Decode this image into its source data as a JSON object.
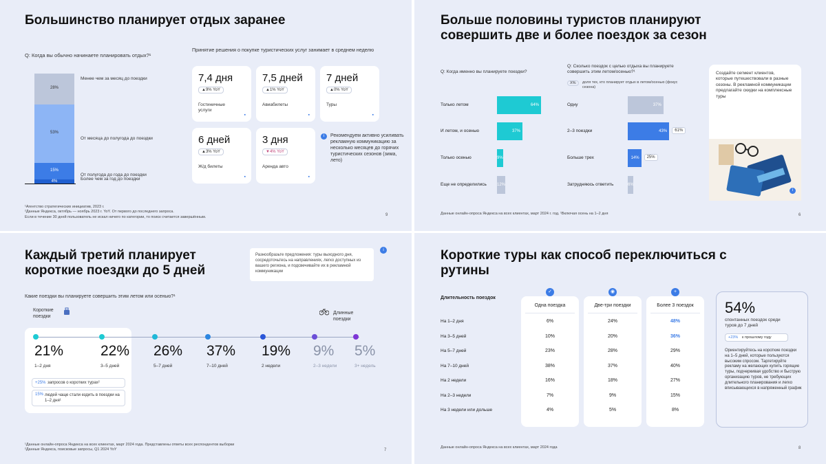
{
  "slide1": {
    "title": "Большинство планирует отдых заранее",
    "question": "Q: Когда вы обычно начинаете планировать отдых?¹",
    "stack": [
      {
        "label": "Менее чем за месяц до поездки",
        "pct": "28%",
        "value": 28,
        "color": "#bcc6da"
      },
      {
        "label": "От месяца до полугода до поездки",
        "pct": "53%",
        "value": 53,
        "color": "#8db5f5"
      },
      {
        "label": "От полугода до года до поездки",
        "pct": "15%",
        "value": 15,
        "color": "#3c7ce6"
      },
      {
        "label": "Более чем за год до поездки",
        "pct": "4%",
        "value": 4,
        "color": "#1f5fd0"
      }
    ],
    "decision_header": "Принятие решения о покупке туристических услуг занимает в среднем неделю",
    "cards": [
      {
        "days": "7,4 дня",
        "yoy": "▲9% YoY",
        "label": "Гостиничные услуги",
        "icon": "bed-icon"
      },
      {
        "days": "7,5 дней",
        "yoy": "▲1% YoY",
        "label": "Авиабилеты",
        "icon": "plane-icon"
      },
      {
        "days": "7 дней",
        "yoy": "▲0% YoY",
        "label": "Туры",
        "icon": "bus-icon"
      },
      {
        "days": "6 дней",
        "yoy": "▲3% YoY",
        "label": "Ж/д билеты",
        "icon": "train-icon"
      },
      {
        "days": "3 дня",
        "yoy": "▼4% YoY",
        "label": "Аренда авто",
        "icon": "car-icon"
      }
    ],
    "recommendation": "Рекомендуем активно усиливать рекламную коммуникацию за несколько месяцев до горячих туристических сезонов (зима, лето)",
    "footnotes": [
      "¹Агентство стратегических инициатив, 2023 г.",
      "²Данные Яндекса, октябрь — ноябрь 2023 г. YoY. От первого до последнего запроса.",
      "Если в течение 30 дней пользователь не искал ничего по категории, то поиск считается завершённым."
    ],
    "page": "9"
  },
  "slide2": {
    "title": "Больше половины туристов планируют совершить две и более поездок за сезон",
    "q1": "Q: Когда именно вы планируете поездки?",
    "q2": "Q: Сколько поездок с целью отдыха вы планируете совершить этим летом/осенью?¹",
    "legend_pill": "X%",
    "legend_text": "доля тех, кто планирует отдых в летом/осенью (фокус сезона)",
    "left_bars": [
      {
        "label": "Только летом",
        "pct": "64%",
        "value": 64,
        "color": "#1ecad3"
      },
      {
        "label": "И летом, и осенью",
        "pct": "37%",
        "value": 37,
        "color": "#1ecad3"
      },
      {
        "label": "Только осенью",
        "pct": "9%",
        "value": 9,
        "color": "#1ecad3"
      },
      {
        "label": "Еще не определились",
        "pct": "12%",
        "value": 12,
        "color": "#bcc6da"
      }
    ],
    "right_bars": [
      {
        "label": "Одну",
        "pct": "37%",
        "value": 37,
        "color": "#bcc6da",
        "extra": ""
      },
      {
        "label": "2–3 поездки",
        "pct": "43%",
        "value": 43,
        "color": "#3c7ce6",
        "extra": "61%"
      },
      {
        "label": "Больше трех",
        "pct": "14%",
        "value": 14,
        "color": "#3c7ce6",
        "extra": "25%"
      },
      {
        "label": "Затрудняюсь ответить",
        "pct": "6%",
        "value": 6,
        "color": "#bcc6da",
        "extra": ""
      }
    ],
    "tip": "Создайте сегмент клиентов, которые путешествовали в разные сезоны. В рекламной коммуникации предлагайте скидки на комплексные туры",
    "footnote": "Данные онлайн-опроса Яндекса на всех клиентах, март 2024 г. год. ¹Включая осень на 1–2 дня",
    "page": "6"
  },
  "slide3": {
    "title": "Каждый третий планирует короткие поездки до 5 дней",
    "callout": "Разнообразьте предложения: туры выходного дня, сосредоточьтесь на направлениях, легко доступных из вашего региона, и подсвечивайте их в рекламной коммуникации",
    "question": "Какие поездки вы планируете совершить этим летом или осенью?¹",
    "short_label": "Короткие поездки",
    "long_label": "Длинные поездки",
    "points": [
      {
        "pct": "21%",
        "label": "1–2 дня",
        "color": "#1ecad3"
      },
      {
        "pct": "22%",
        "label": "3–5 дней",
        "color": "#1ecad3"
      },
      {
        "pct": "26%",
        "label": "5–7 дней",
        "color": "#20b8d8"
      },
      {
        "pct": "37%",
        "label": "7–10 дней",
        "color": "#2c86e0"
      },
      {
        "pct": "19%",
        "label": "2 недели",
        "color": "#2a56d8"
      },
      {
        "pct": "9%",
        "label": "2–3 недели",
        "color": "#6c4fd8"
      },
      {
        "pct": "5%",
        "label": "3+ недель",
        "color": "#7d35d6"
      }
    ],
    "note1_hl": "+25%",
    "note1_rest": "запросов о коротких турах²",
    "note2_hl": "15%",
    "note2_rest": "людей чаще стали ездить в поездки на 1–2 дня¹",
    "footnotes": [
      "¹Данные онлайн-опроса Яндекса на всех клиентах, март 2024 года. Представлены ответы всех респондентов выборки",
      "²Данные Яндекса, поисковые запросы, Q1 2024 YoY"
    ],
    "page": "7"
  },
  "slide4": {
    "title": "Короткие туры как способ переключиться с рутины",
    "col_header": "Длительность поездок",
    "columns": [
      "Одна поездка",
      "Две-три поездки",
      "Более 3 поездок"
    ],
    "rows": [
      {
        "label": "На 1–2 дня",
        "values": [
          "6%",
          "24%",
          "48%"
        ]
      },
      {
        "label": "На 3–5 дней",
        "values": [
          "10%",
          "20%",
          "36%"
        ]
      },
      {
        "label": "На 5–7 дней",
        "values": [
          "23%",
          "28%",
          "29%"
        ]
      },
      {
        "label": "На 7–10 дней",
        "values": [
          "38%",
          "37%",
          "40%"
        ]
      },
      {
        "label": "На 2 недели",
        "values": [
          "16%",
          "18%",
          "27%"
        ]
      },
      {
        "label": "На 2–3 недели",
        "values": [
          "7%",
          "9%",
          "15%"
        ]
      },
      {
        "label": "На 3 недели или дольше",
        "values": [
          "4%",
          "5%",
          "8%"
        ]
      }
    ],
    "highlight": [
      "48%",
      "36%"
    ],
    "stat_big": "54%",
    "stat_text": "спонтанных поездок среди туров до 7 дней",
    "stat_pill_hl": "+23%",
    "stat_pill_rest": "к прошлому году",
    "side_text": "Ориентируйтесь на короткие поездки на 1–5 дней, которые пользуются высоким спросом. Таргетируйте рекламу на желающих купить горящие туры, подчеркивая удобство и быструю организацию туров, не требующих длительного планирования и легко вписывающихся в напряженный график",
    "footnote": "Данные онлайн-опроса Яндекса на всех клиентах, март 2024 года",
    "page": "8"
  }
}
